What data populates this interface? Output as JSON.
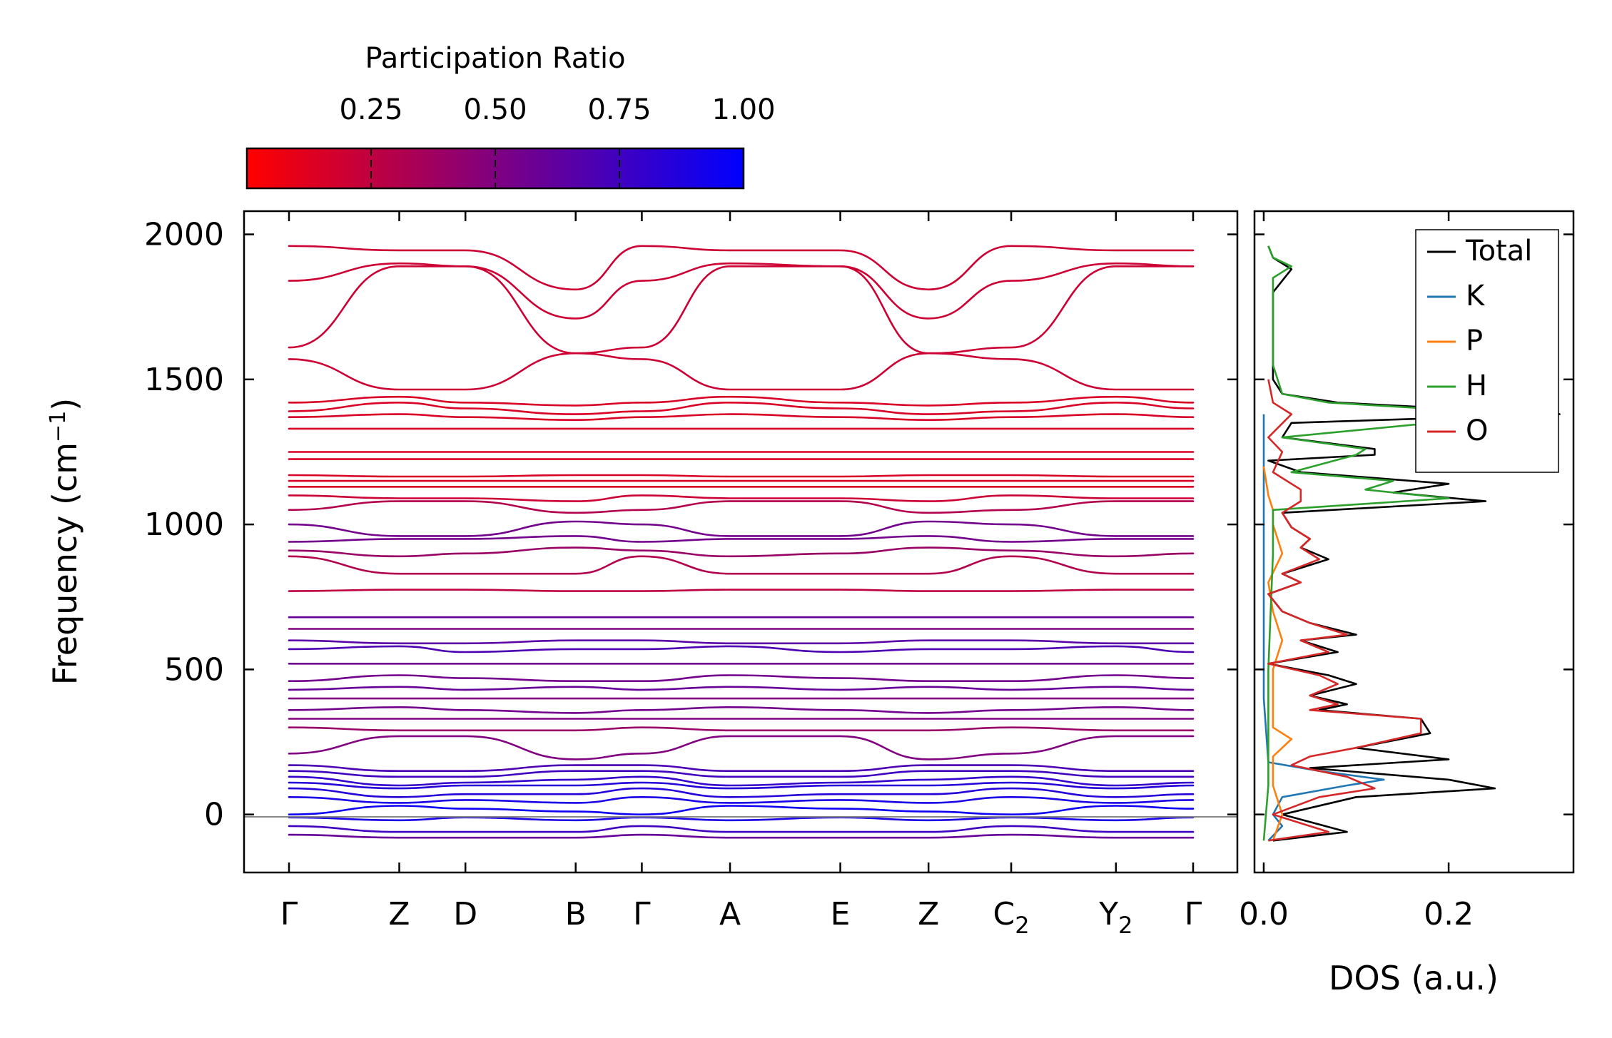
{
  "chart_data": [
    {
      "type": "line",
      "subtype": "phonon-band-structure",
      "title": "",
      "ylabel": "Frequency (cm",
      "ylabel_sup": "−1",
      "ylabel_end": ")",
      "xlabel": "",
      "ylim": [
        -200,
        2080
      ],
      "yticks": [
        0,
        500,
        1000,
        1500,
        2000
      ],
      "ytick_labels": [
        "0",
        "500",
        "1000",
        "1500",
        "2000"
      ],
      "kpath_labels": [
        {
          "main": "Γ",
          "sub": ""
        },
        {
          "main": "Z",
          "sub": ""
        },
        {
          "main": "D",
          "sub": ""
        },
        {
          "main": "B",
          "sub": ""
        },
        {
          "main": "Γ",
          "sub": ""
        },
        {
          "main": "A",
          "sub": ""
        },
        {
          "main": "E",
          "sub": ""
        },
        {
          "main": "Z",
          "sub": ""
        },
        {
          "main": "C",
          "sub": "2"
        },
        {
          "main": "Y",
          "sub": "2"
        },
        {
          "main": "Γ",
          "sub": ""
        }
      ],
      "kpath_positions": [
        0,
        1.0,
        1.6,
        2.6,
        3.2,
        4.0,
        5.0,
        5.8,
        6.55,
        7.5,
        8.2
      ],
      "path_breaks_at_index": [
        3
      ],
      "color_encoding": "participation ratio (red = low, blue = high)",
      "bands": [
        {
          "nodes": [
            1960,
            1945,
            1945,
            1810
          ],
          "pr": 0.2
        },
        {
          "nodes": [
            1840,
            1900,
            1890,
            1710
          ],
          "pr": 0.2
        },
        {
          "nodes": [
            1610,
            1890,
            1890,
            1590
          ],
          "pr": 0.2
        },
        {
          "nodes": [
            1570,
            1465,
            1465,
            1590
          ],
          "pr": 0.2
        },
        {
          "nodes": [
            1420,
            1440,
            1420,
            1410
          ],
          "pr": 0.15
        },
        {
          "nodes": [
            1390,
            1420,
            1400,
            1380
          ],
          "pr": 0.15
        },
        {
          "nodes": [
            1370,
            1380,
            1370,
            1360
          ],
          "pr": 0.15
        },
        {
          "nodes": [
            1330,
            1330,
            1330,
            1330
          ],
          "pr": 0.15
        },
        {
          "nodes": [
            1250,
            1250,
            1250,
            1250
          ],
          "pr": 0.15
        },
        {
          "nodes": [
            1225,
            1225,
            1225,
            1225
          ],
          "pr": 0.15
        },
        {
          "nodes": [
            1170,
            1165,
            1165,
            1170
          ],
          "pr": 0.15
        },
        {
          "nodes": [
            1150,
            1150,
            1150,
            1150
          ],
          "pr": 0.15
        },
        {
          "nodes": [
            1130,
            1130,
            1130,
            1130
          ],
          "pr": 0.15
        },
        {
          "nodes": [
            1100,
            1090,
            1090,
            1080
          ],
          "pr": 0.2
        },
        {
          "nodes": [
            1050,
            1080,
            1080,
            1040
          ],
          "pr": 0.3
        },
        {
          "nodes": [
            1000,
            960,
            960,
            1010
          ],
          "pr": 0.55
        },
        {
          "nodes": [
            940,
            950,
            950,
            960
          ],
          "pr": 0.55
        },
        {
          "nodes": [
            910,
            890,
            900,
            920
          ],
          "pr": 0.4
        },
        {
          "nodes": [
            890,
            830,
            830,
            830
          ],
          "pr": 0.3
        },
        {
          "nodes": [
            770,
            775,
            775,
            770
          ],
          "pr": 0.25
        },
        {
          "nodes": [
            680,
            680,
            680,
            680
          ],
          "pr": 0.6
        },
        {
          "nodes": [
            640,
            640,
            640,
            640
          ],
          "pr": 0.5
        },
        {
          "nodes": [
            600,
            590,
            590,
            600
          ],
          "pr": 0.65
        },
        {
          "nodes": [
            570,
            580,
            560,
            570
          ],
          "pr": 0.7
        },
        {
          "nodes": [
            520,
            520,
            520,
            520
          ],
          "pr": 0.55
        },
        {
          "nodes": [
            460,
            480,
            470,
            460
          ],
          "pr": 0.55
        },
        {
          "nodes": [
            430,
            440,
            430,
            440
          ],
          "pr": 0.6
        },
        {
          "nodes": [
            400,
            400,
            400,
            400
          ],
          "pr": 0.5
        },
        {
          "nodes": [
            360,
            370,
            360,
            350
          ],
          "pr": 0.55
        },
        {
          "nodes": [
            330,
            330,
            330,
            330
          ],
          "pr": 0.5
        },
        {
          "nodes": [
            300,
            290,
            290,
            290
          ],
          "pr": 0.4
        },
        {
          "nodes": [
            210,
            270,
            270,
            190
          ],
          "pr": 0.5
        },
        {
          "nodes": [
            170,
            150,
            150,
            170
          ],
          "pr": 0.7
        },
        {
          "nodes": [
            150,
            130,
            130,
            150
          ],
          "pr": 0.75
        },
        {
          "nodes": [
            130,
            100,
            110,
            120
          ],
          "pr": 0.8
        },
        {
          "nodes": [
            110,
            90,
            100,
            100
          ],
          "pr": 0.85
        },
        {
          "nodes": [
            90,
            60,
            70,
            70
          ],
          "pr": 0.85
        },
        {
          "nodes": [
            60,
            40,
            50,
            40
          ],
          "pr": 0.9
        },
        {
          "nodes": [
            0,
            30,
            20,
            10
          ],
          "pr": 0.95
        },
        {
          "nodes": [
            -10,
            -20,
            -10,
            -20
          ],
          "pr": 0.9
        },
        {
          "nodes": [
            -40,
            -60,
            -60,
            -60
          ],
          "pr": 0.75
        },
        {
          "nodes": [
            -70,
            -80,
            -80,
            -80
          ],
          "pr": 0.6
        }
      ]
    },
    {
      "type": "colorbar",
      "title": "Participation Ratio",
      "ticks": [
        0.25,
        0.5,
        0.75,
        1.0
      ],
      "tick_labels": [
        "0.25",
        "0.50",
        "0.75",
        "1.00"
      ],
      "range": [
        0.0,
        1.0
      ],
      "colors": {
        "low": "#ff0000",
        "high": "#0000ff"
      }
    },
    {
      "type": "line",
      "subtype": "density-of-states",
      "xlabel": "DOS (a.u.)",
      "xlim": [
        -0.01,
        0.335
      ],
      "xticks": [
        0.0,
        0.2
      ],
      "xtick_labels": [
        "0.0",
        "0.2"
      ],
      "ylim": [
        -200,
        2080
      ],
      "legend_position": "top-right",
      "series": [
        {
          "name": "Total",
          "color": "#000000",
          "points": [
            [
              -90,
              0.01
            ],
            [
              -60,
              0.09
            ],
            [
              0,
              0.02
            ],
            [
              60,
              0.1
            ],
            [
              90,
              0.25
            ],
            [
              120,
              0.2
            ],
            [
              160,
              0.05
            ],
            [
              190,
              0.2
            ],
            [
              230,
              0.1
            ],
            [
              280,
              0.18
            ],
            [
              330,
              0.17
            ],
            [
              360,
              0.06
            ],
            [
              380,
              0.09
            ],
            [
              410,
              0.05
            ],
            [
              450,
              0.1
            ],
            [
              480,
              0.07
            ],
            [
              520,
              0.005
            ],
            [
              560,
              0.08
            ],
            [
              600,
              0.04
            ],
            [
              620,
              0.1
            ],
            [
              660,
              0.05
            ],
            [
              700,
              0.02
            ],
            [
              760,
              0.005
            ],
            [
              800,
              0.04
            ],
            [
              830,
              0.02
            ],
            [
              880,
              0.07
            ],
            [
              920,
              0.04
            ],
            [
              950,
              0.05
            ],
            [
              990,
              0.03
            ],
            [
              1040,
              0.02
            ],
            [
              1080,
              0.24
            ],
            [
              1110,
              0.14
            ],
            [
              1140,
              0.2
            ],
            [
              1180,
              0.04
            ],
            [
              1220,
              0.005
            ],
            [
              1240,
              0.12
            ],
            [
              1260,
              0.12
            ],
            [
              1300,
              0.02
            ],
            [
              1350,
              0.03
            ],
            [
              1380,
              0.32
            ],
            [
              1420,
              0.08
            ],
            [
              1450,
              0.02
            ],
            [
              1500,
              0.01
            ],
            [
              1600,
              0.01
            ],
            [
              1700,
              0.01
            ],
            [
              1800,
              0.01
            ],
            [
              1880,
              0.03
            ],
            [
              1920,
              0.01
            ],
            [
              1960,
              0.005
            ]
          ]
        },
        {
          "name": "K",
          "color": "#1f77b4",
          "points": [
            [
              -90,
              0.005
            ],
            [
              -40,
              0.02
            ],
            [
              0,
              0.01
            ],
            [
              60,
              0.02
            ],
            [
              100,
              0.09
            ],
            [
              120,
              0.13
            ],
            [
              150,
              0.06
            ],
            [
              180,
              0.005
            ],
            [
              400,
              0.0
            ],
            [
              1380,
              0.0
            ]
          ]
        },
        {
          "name": "P",
          "color": "#ff7f0e",
          "points": [
            [
              -90,
              0.01
            ],
            [
              0,
              0.02
            ],
            [
              100,
              0.01
            ],
            [
              200,
              0.01
            ],
            [
              260,
              0.03
            ],
            [
              300,
              0.01
            ],
            [
              400,
              0.01
            ],
            [
              500,
              0.01
            ],
            [
              600,
              0.02
            ],
            [
              700,
              0.01
            ],
            [
              800,
              0.005
            ],
            [
              900,
              0.02
            ],
            [
              1000,
              0.01
            ],
            [
              1050,
              0.01
            ],
            [
              1100,
              0.005
            ],
            [
              1200,
              0.0
            ]
          ]
        },
        {
          "name": "H",
          "color": "#2ca02c",
          "points": [
            [
              -90,
              0.0
            ],
            [
              100,
              0.005
            ],
            [
              500,
              0.005
            ],
            [
              900,
              0.01
            ],
            [
              1050,
              0.01
            ],
            [
              1090,
              0.2
            ],
            [
              1120,
              0.11
            ],
            [
              1150,
              0.14
            ],
            [
              1180,
              0.03
            ],
            [
              1240,
              0.1
            ],
            [
              1260,
              0.11
            ],
            [
              1300,
              0.02
            ],
            [
              1380,
              0.28
            ],
            [
              1420,
              0.07
            ],
            [
              1450,
              0.02
            ],
            [
              1550,
              0.01
            ],
            [
              1700,
              0.01
            ],
            [
              1850,
              0.01
            ],
            [
              1890,
              0.03
            ],
            [
              1920,
              0.01
            ],
            [
              1960,
              0.005
            ]
          ]
        },
        {
          "name": "O",
          "color": "#d62728",
          "points": [
            [
              -90,
              0.005
            ],
            [
              -60,
              0.07
            ],
            [
              0,
              0.01
            ],
            [
              60,
              0.06
            ],
            [
              90,
              0.12
            ],
            [
              130,
              0.09
            ],
            [
              170,
              0.03
            ],
            [
              200,
              0.05
            ],
            [
              230,
              0.1
            ],
            [
              280,
              0.17
            ],
            [
              330,
              0.17
            ],
            [
              360,
              0.05
            ],
            [
              380,
              0.08
            ],
            [
              410,
              0.05
            ],
            [
              450,
              0.08
            ],
            [
              480,
              0.06
            ],
            [
              520,
              0.005
            ],
            [
              560,
              0.07
            ],
            [
              600,
              0.04
            ],
            [
              620,
              0.09
            ],
            [
              660,
              0.05
            ],
            [
              700,
              0.02
            ],
            [
              760,
              0.005
            ],
            [
              800,
              0.04
            ],
            [
              830,
              0.02
            ],
            [
              880,
              0.06
            ],
            [
              920,
              0.04
            ],
            [
              950,
              0.05
            ],
            [
              990,
              0.03
            ],
            [
              1040,
              0.02
            ],
            [
              1080,
              0.04
            ],
            [
              1120,
              0.04
            ],
            [
              1180,
              0.01
            ],
            [
              1250,
              0.02
            ],
            [
              1300,
              0.005
            ],
            [
              1380,
              0.03
            ],
            [
              1420,
              0.01
            ],
            [
              1500,
              0.005
            ]
          ]
        }
      ]
    }
  ]
}
